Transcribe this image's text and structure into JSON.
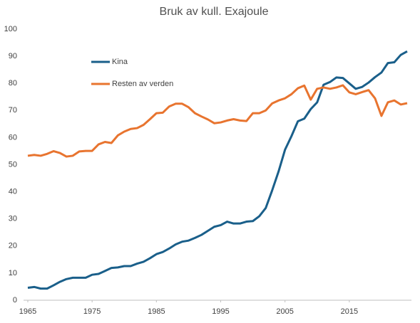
{
  "chart_data": {
    "type": "line",
    "title": "Bruk av kull. Exajoule",
    "x": [
      1965,
      1966,
      1967,
      1968,
      1969,
      1970,
      1971,
      1972,
      1973,
      1974,
      1975,
      1976,
      1977,
      1978,
      1979,
      1980,
      1981,
      1982,
      1983,
      1984,
      1985,
      1986,
      1987,
      1988,
      1989,
      1990,
      1991,
      1992,
      1993,
      1994,
      1995,
      1996,
      1997,
      1998,
      1999,
      2000,
      2001,
      2002,
      2003,
      2004,
      2005,
      2006,
      2007,
      2008,
      2009,
      2010,
      2011,
      2012,
      2013,
      2014,
      2015,
      2016,
      2017,
      2018,
      2019,
      2020,
      2021,
      2022,
      2023,
      2024
    ],
    "series": [
      {
        "name": "Kina",
        "color": "#1a5f8a",
        "values": [
          4.6,
          4.9,
          4.3,
          4.3,
          5.5,
          6.8,
          7.8,
          8.3,
          8.3,
          8.3,
          9.4,
          9.7,
          10.8,
          11.9,
          12.1,
          12.6,
          12.6,
          13.5,
          14.2,
          15.5,
          17.0,
          17.8,
          19.1,
          20.6,
          21.6,
          22.0,
          23.0,
          24.1,
          25.6,
          27.1,
          27.7,
          29.0,
          28.3,
          28.3,
          29.0,
          29.2,
          31.0,
          34.0,
          40.5,
          47.5,
          55.5,
          60.5,
          66.0,
          67.0,
          70.5,
          73.0,
          79.5,
          80.5,
          82.2,
          82.0,
          80.0,
          78.0,
          78.7,
          80.3,
          82.3,
          84.0,
          87.5,
          87.8,
          90.5,
          91.8
        ]
      },
      {
        "name": "Resten av verden",
        "color": "#e8742f",
        "values": [
          53.3,
          53.6,
          53.3,
          54.0,
          55.0,
          54.3,
          53.0,
          53.3,
          54.9,
          55.1,
          55.1,
          57.5,
          58.4,
          58.0,
          60.8,
          62.2,
          63.2,
          63.5,
          64.7,
          66.8,
          69.0,
          69.2,
          71.5,
          72.5,
          72.5,
          71.2,
          69.0,
          67.8,
          66.7,
          65.3,
          65.6,
          66.3,
          66.8,
          66.3,
          66.1,
          69.0,
          69.0,
          70.0,
          72.6,
          73.7,
          74.5,
          76.0,
          78.2,
          79.2,
          74.0,
          78.0,
          78.5,
          78.0,
          78.5,
          79.3,
          76.7,
          76.0,
          76.8,
          77.5,
          74.5,
          68.0,
          73.0,
          73.7,
          72.2,
          72.7
        ]
      }
    ],
    "xlim": [
      1965,
      2024
    ],
    "xticks": [
      1965,
      1975,
      1985,
      1995,
      2005,
      2015
    ],
    "ylim": [
      0,
      100
    ],
    "yticks": [
      0,
      10,
      20,
      30,
      40,
      50,
      60,
      70,
      80,
      90,
      100
    ],
    "grid": false,
    "legend": "upper left"
  }
}
